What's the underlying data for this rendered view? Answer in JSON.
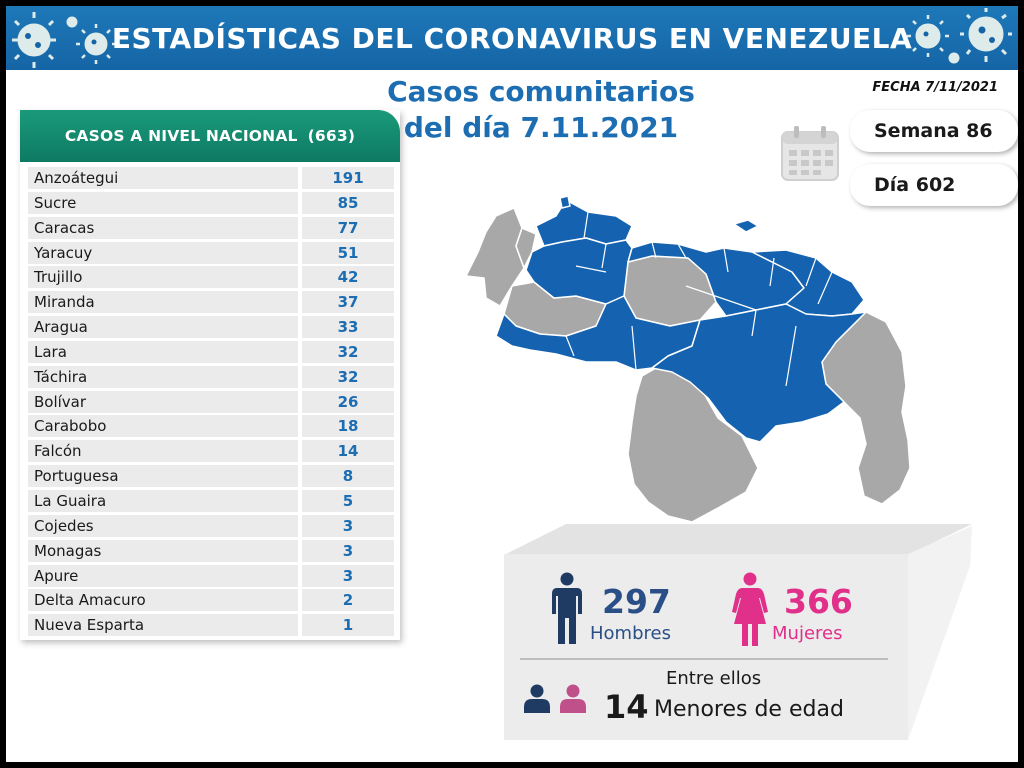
{
  "header": {
    "title": "ESTADÍSTICAS DEL CORONAVIRUS EN VENEZUELA",
    "date_label": "FECHA 7/11/2021"
  },
  "subtitle": {
    "line1": "Casos comunitarios",
    "line2": "del día 7.11.2021"
  },
  "week": "Semana 86",
  "day": "Día 602",
  "table": {
    "header_label": "CASOS A NIVEL NACIONAL",
    "header_total": "(663)",
    "rows": [
      {
        "state": "Anzoátegui",
        "cases": "191"
      },
      {
        "state": "Sucre",
        "cases": "85"
      },
      {
        "state": "Caracas",
        "cases": "77"
      },
      {
        "state": "Yaracuy",
        "cases": "51"
      },
      {
        "state": "Trujillo",
        "cases": "42"
      },
      {
        "state": "Miranda",
        "cases": "37"
      },
      {
        "state": "Aragua",
        "cases": "33"
      },
      {
        "state": "Lara",
        "cases": "32"
      },
      {
        "state": "Táchira",
        "cases": "32"
      },
      {
        "state": "Bolívar",
        "cases": "26"
      },
      {
        "state": "Carabobo",
        "cases": "18"
      },
      {
        "state": "Falcón",
        "cases": "14"
      },
      {
        "state": "Portuguesa",
        "cases": "8"
      },
      {
        "state": "La Guaira",
        "cases": "5"
      },
      {
        "state": "Cojedes",
        "cases": "3"
      },
      {
        "state": "Monagas",
        "cases": "3"
      },
      {
        "state": "Apure",
        "cases": "3"
      },
      {
        "state": "Delta Amacuro",
        "cases": "2"
      },
      {
        "state": "Nueva Esparta",
        "cases": "1"
      }
    ]
  },
  "stats": {
    "men_count": "297",
    "men_label": "Hombres",
    "women_count": "366",
    "women_label": "Mujeres",
    "among_label": "Entre ellos",
    "minors_count": "14",
    "minors_label": "Menores de edad"
  },
  "colors": {
    "banner_blue": "#1565a6",
    "table_header_green": "#0e7a64",
    "value_blue": "#1d6db3",
    "map_blue": "#1462b0",
    "map_gray": "#a6a6a6",
    "men_navy": "#1f3b63",
    "women_pink": "#e0308a",
    "men_text": "#2a4f86"
  },
  "icons": [
    "virus-icon",
    "calendar-icon",
    "man-icon",
    "woman-icon",
    "child-boy-icon",
    "child-girl-icon"
  ]
}
